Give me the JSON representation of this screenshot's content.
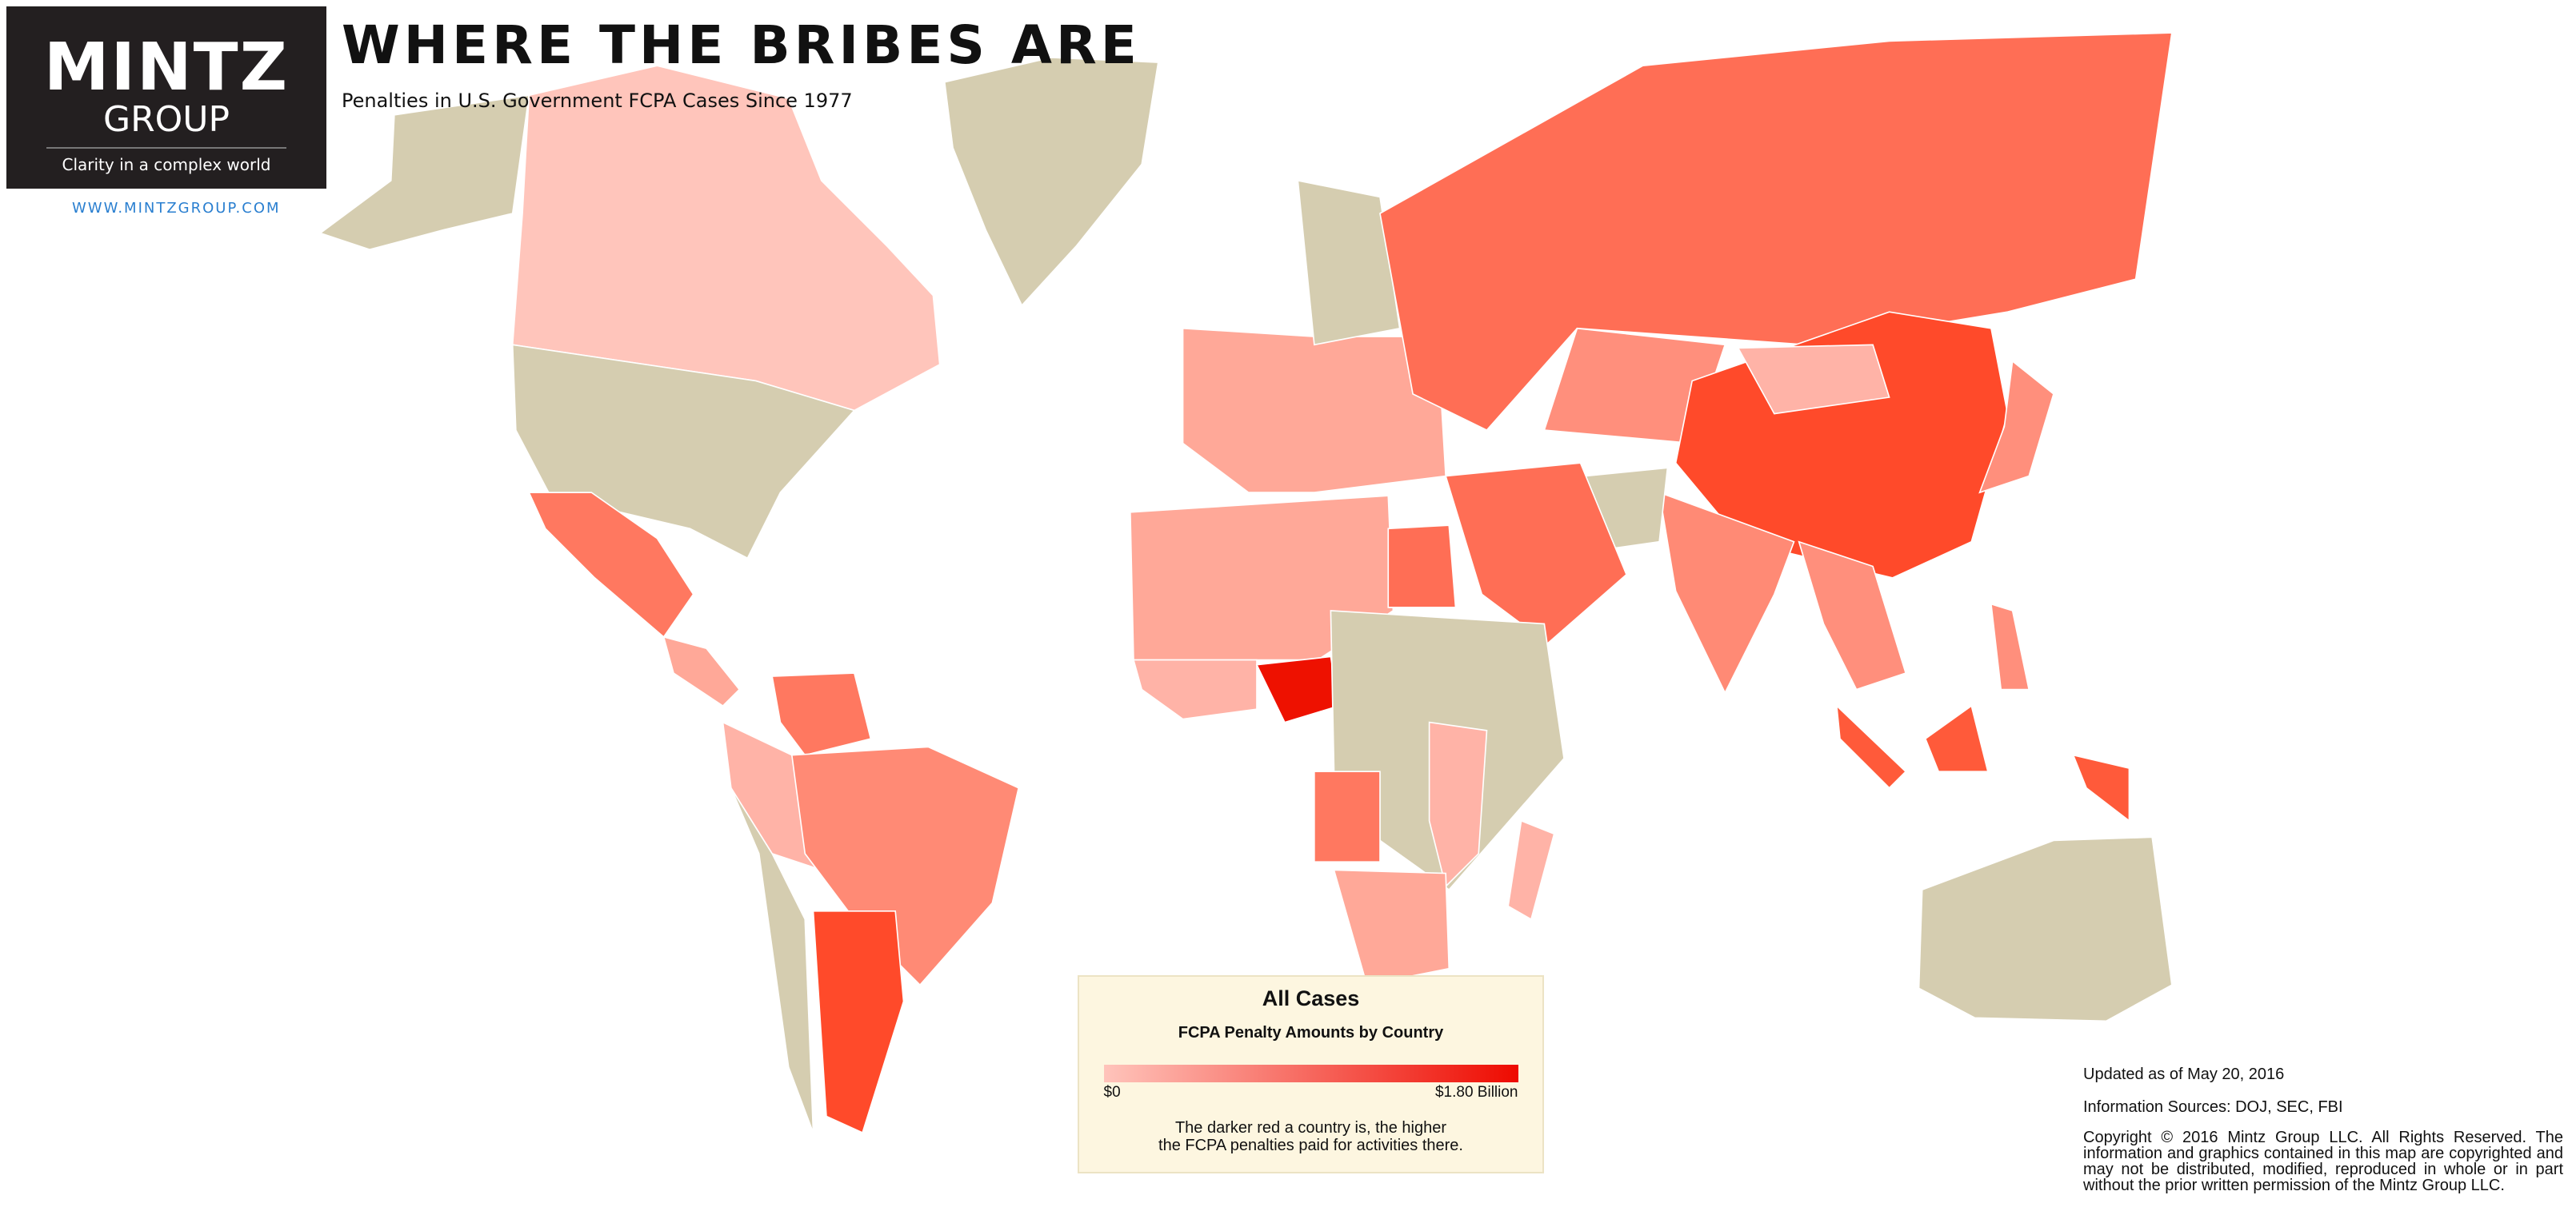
{
  "header": {
    "logo_name": "MINTZ",
    "logo_sub": "GROUP",
    "logo_tagline": "Clarity in a complex world",
    "website": "WWW.MINTZGROUP.COM",
    "title": "WHERE THE BRIBES ARE",
    "subtitle": "Penalties in U.S. Government FCPA Cases Since 1977"
  },
  "legend": {
    "title": "All Cases",
    "subtitle": "FCPA Penalty Amounts by Country",
    "min_label": "$0",
    "max_label": "$1.80 Billion",
    "description": [
      "The darker red a country is, the higher",
      "the FCPA penalties paid for activities there."
    ]
  },
  "footer": {
    "updated": "Updated as of May 20, 2016",
    "sources": "Information Sources: DOJ, SEC, FBI",
    "copyright": "Copyright © 2016 Mintz Group LLC. All Rights Reserved. The information and graphics contained in this map are copyrighted and may not be distributed, modified, reproduced in whole or in part without the prior written permission of the Mintz Group LLC."
  }
}
